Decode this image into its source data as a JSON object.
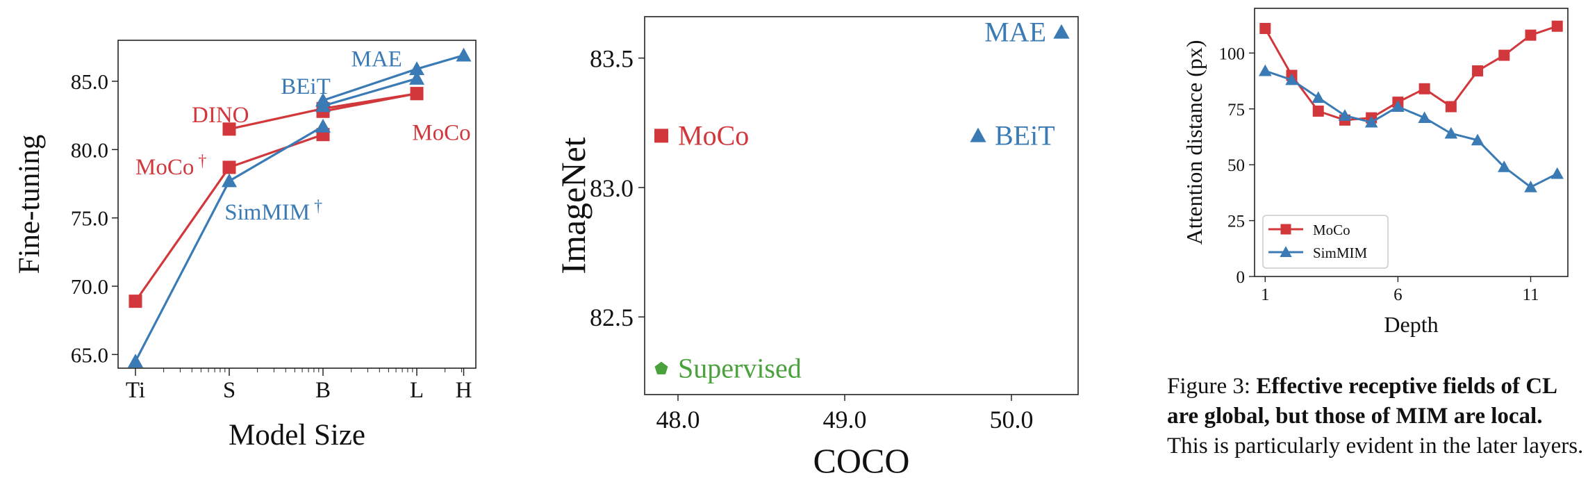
{
  "colors": {
    "moco": "#d1373b",
    "simmim": "#3a7ab5",
    "supervised": "#4aa23c",
    "axis": "#222222"
  },
  "chart_data": [
    {
      "type": "line",
      "xlabel": "Model Size",
      "ylabel": "Fine-tuning",
      "x_ticks": [
        "Ti",
        "S",
        "B",
        "L",
        "H"
      ],
      "x_positions": [
        0,
        1,
        2,
        3,
        3.5
      ],
      "ylim": [
        64,
        88
      ],
      "y_ticks": [
        "65.0",
        "70.0",
        "75.0",
        "80.0",
        "85.0"
      ],
      "y_tick_values": [
        65,
        70,
        75,
        80,
        85
      ],
      "series": [
        {
          "method": "MoCo †",
          "color": "moco",
          "marker": "square",
          "points": [
            [
              0,
              68.9
            ],
            [
              1,
              78.7
            ],
            [
              2,
              81.1
            ]
          ]
        },
        {
          "method": "DINO",
          "color": "moco",
          "marker": "square",
          "points": [
            [
              1,
              81.5
            ],
            [
              2,
              83.0
            ],
            [
              3,
              84.1
            ]
          ]
        },
        {
          "method": "MoCo",
          "color": "moco",
          "marker": "square",
          "points": [
            [
              2,
              82.8
            ],
            [
              3,
              84.1
            ]
          ]
        },
        {
          "method": "SimMIM †",
          "color": "simmim",
          "marker": "triangle",
          "points": [
            [
              0,
              64.5
            ],
            [
              1,
              77.7
            ],
            [
              2,
              81.7
            ]
          ]
        },
        {
          "method": "BEiT",
          "color": "simmim",
          "marker": "triangle",
          "points": [
            [
              2,
              83.2
            ],
            [
              3,
              85.2
            ]
          ]
        },
        {
          "method": "MAE",
          "color": "simmim",
          "marker": "triangle",
          "points": [
            [
              2,
              83.6
            ],
            [
              3,
              85.9
            ],
            [
              3.5,
              86.9
            ]
          ]
        }
      ],
      "annotations": [
        {
          "text": "DINO",
          "color": "moco",
          "x": 0.6,
          "y": 82.5
        },
        {
          "text": "MoCo",
          "color": "moco",
          "x": 0.0,
          "y": 78.7,
          "dagger": "†"
        },
        {
          "text": "MoCo",
          "color": "moco",
          "x": 2.95,
          "y": 81.2
        },
        {
          "text": "BEiT",
          "color": "simmim",
          "x": 1.55,
          "y": 84.6
        },
        {
          "text": "MAE",
          "color": "simmim",
          "x": 2.3,
          "y": 86.6
        },
        {
          "text": "SimMIM",
          "color": "simmim",
          "x": 0.95,
          "y": 75.4,
          "dagger": "†"
        }
      ]
    },
    {
      "type": "scatter",
      "xlabel": "COCO",
      "ylabel": "ImageNet",
      "xlim": [
        47.8,
        50.4
      ],
      "ylim": [
        82.2,
        83.66
      ],
      "x_ticks": [
        "48.0",
        "49.0",
        "50.0"
      ],
      "x_tick_values": [
        48.0,
        49.0,
        50.0
      ],
      "y_ticks": [
        "82.5",
        "83.0",
        "83.5"
      ],
      "y_tick_values": [
        82.5,
        83.0,
        83.5
      ],
      "points": [
        {
          "label": "MoCo",
          "x": 47.9,
          "y": 83.2,
          "color": "moco",
          "marker": "square",
          "label_side": "right"
        },
        {
          "label": "BEiT",
          "x": 49.8,
          "y": 83.2,
          "color": "simmim",
          "marker": "triangle",
          "label_side": "right"
        },
        {
          "label": "MAE",
          "x": 50.3,
          "y": 83.6,
          "color": "simmim",
          "marker": "triangle",
          "label_side": "left"
        },
        {
          "label": "Supervised",
          "x": 47.9,
          "y": 82.3,
          "color": "supervised",
          "marker": "pentagon",
          "label_side": "right"
        }
      ]
    },
    {
      "type": "line",
      "xlabel": "Depth",
      "ylabel": "Attention distance (px)",
      "x": [
        1,
        2,
        3,
        4,
        5,
        6,
        7,
        8,
        9,
        10,
        11,
        12
      ],
      "xlim": [
        0.6,
        12.4
      ],
      "ylim": [
        0,
        120
      ],
      "x_ticks": [
        "1",
        "6",
        "11"
      ],
      "x_tick_values": [
        1,
        6,
        11
      ],
      "y_ticks": [
        "0",
        "25",
        "50",
        "75",
        "100"
      ],
      "y_tick_values": [
        0,
        25,
        50,
        75,
        100
      ],
      "legend_position": "lower-left",
      "series": [
        {
          "name": "MoCo",
          "color": "moco",
          "marker": "square",
          "values": [
            111,
            90,
            74,
            70,
            71,
            78,
            84,
            76,
            92,
            99,
            108,
            112
          ]
        },
        {
          "name": "SimMIM",
          "color": "simmim",
          "marker": "triangle",
          "values": [
            92,
            88,
            80,
            72,
            69,
            76,
            71,
            64,
            61,
            49,
            40,
            46
          ]
        }
      ]
    }
  ],
  "caption": {
    "prefix": "Figure 3: ",
    "bold": "Effective receptive fields of CL are global, but those of MIM are local.",
    "rest": " This is particularly evident in the later layers."
  }
}
